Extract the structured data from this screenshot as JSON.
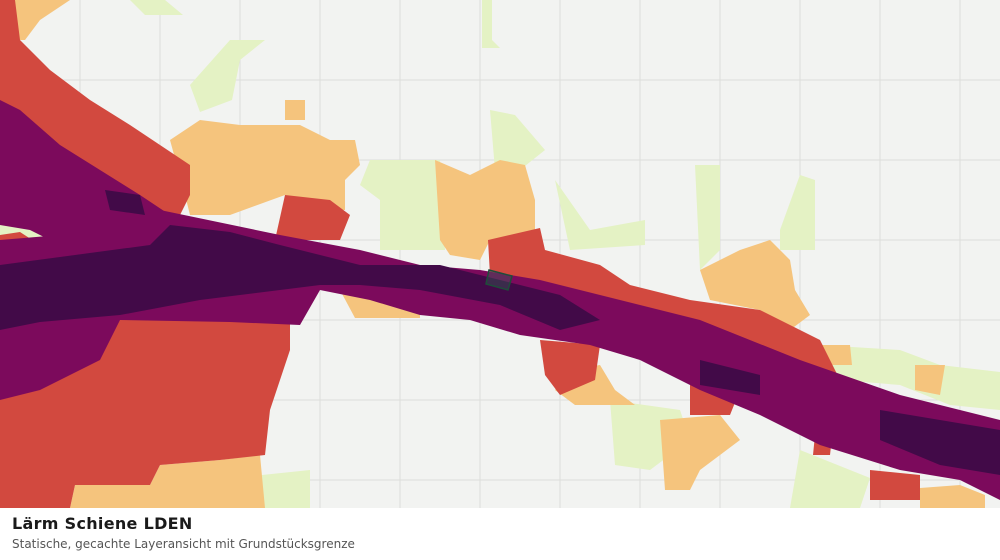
{
  "header": {
    "title": "Lärm Schiene LDEN",
    "subtitle": "Statische, gecachte Layeransicht mit Grundstücksgrenze"
  }
}
